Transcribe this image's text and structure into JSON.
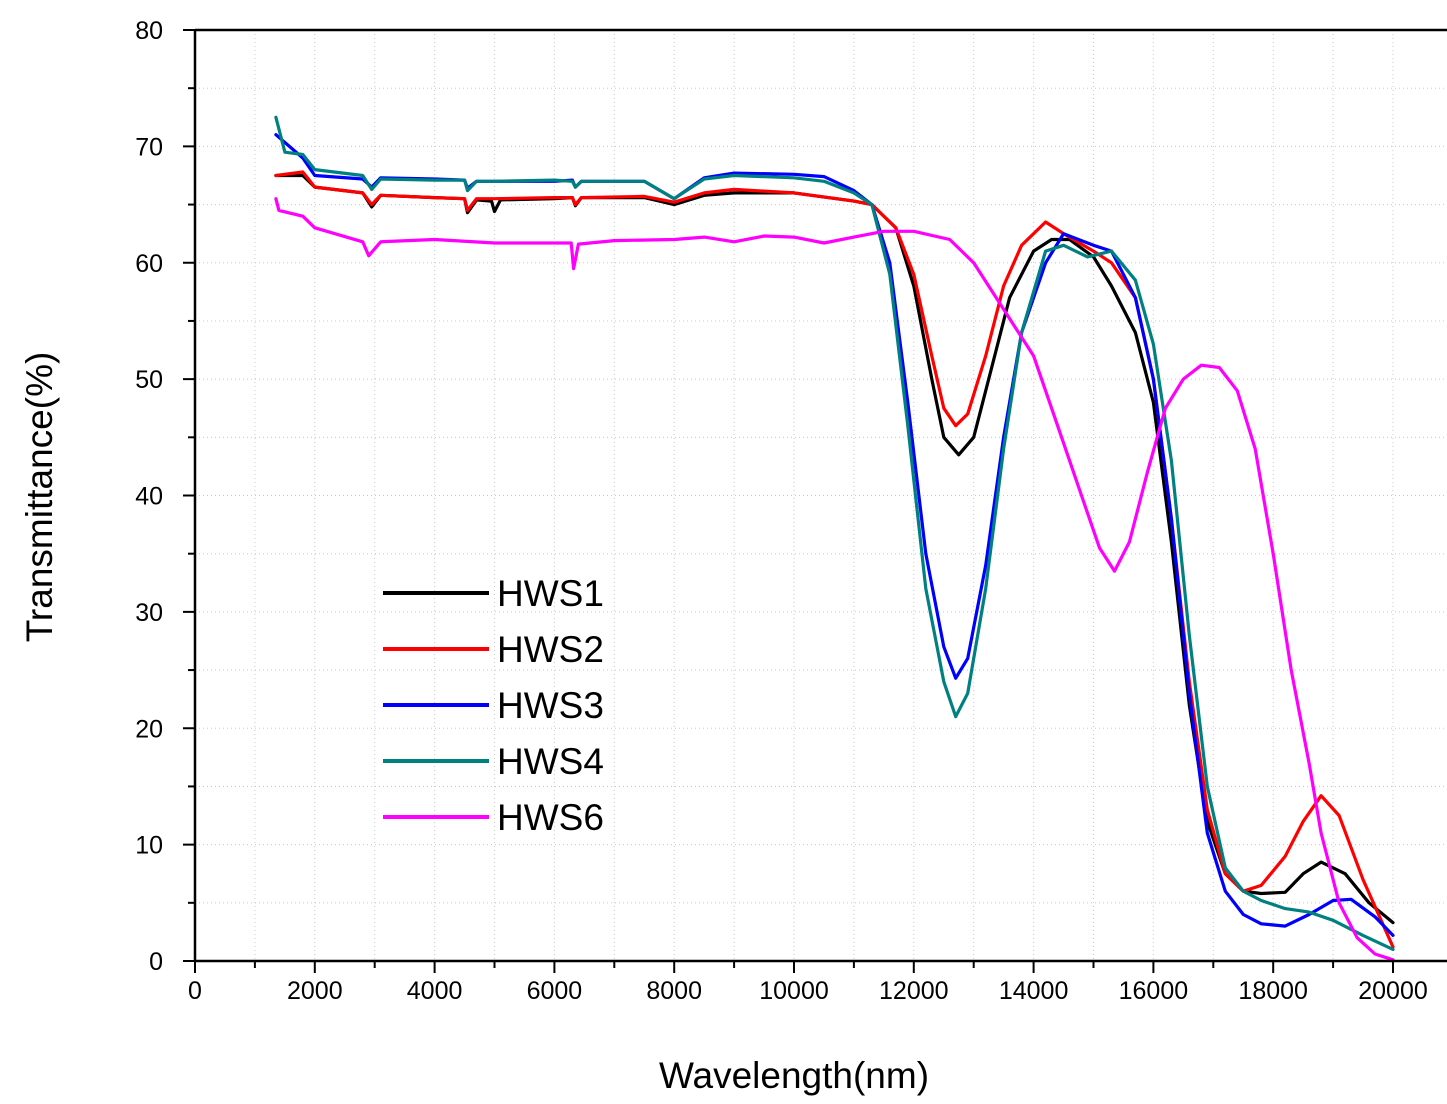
{
  "chart_data": {
    "type": "line",
    "xlabel": "Wavelength(nm)",
    "ylabel": "Transmittance(%)",
    "xlim": [
      0,
      21000
    ],
    "ylim": [
      0,
      80
    ],
    "xticks": [
      0,
      2000,
      4000,
      6000,
      8000,
      10000,
      12000,
      14000,
      16000,
      18000,
      20000
    ],
    "yticks": [
      0,
      10,
      20,
      30,
      40,
      50,
      60,
      70,
      80
    ],
    "grid": true,
    "legend_position": "lower-left",
    "series": [
      {
        "name": "HWS1",
        "color": "#000000",
        "points": [
          [
            1350,
            67.5
          ],
          [
            1800,
            67.5
          ],
          [
            2000,
            66.5
          ],
          [
            2800,
            66
          ],
          [
            2950,
            64.8
          ],
          [
            3100,
            65.8
          ],
          [
            4000,
            65.6
          ],
          [
            4500,
            65.5
          ],
          [
            4550,
            64.3
          ],
          [
            4700,
            65.4
          ],
          [
            4950,
            65.3
          ],
          [
            5000,
            64.4
          ],
          [
            5100,
            65.4
          ],
          [
            6000,
            65.5
          ],
          [
            6300,
            65.6
          ],
          [
            6350,
            64.9
          ],
          [
            6450,
            65.6
          ],
          [
            7500,
            65.6
          ],
          [
            8000,
            65
          ],
          [
            8500,
            65.8
          ],
          [
            9000,
            66
          ],
          [
            10000,
            66
          ],
          [
            11000,
            65.3
          ],
          [
            11300,
            65
          ],
          [
            11700,
            63
          ],
          [
            12000,
            58
          ],
          [
            12300,
            50
          ],
          [
            12500,
            45
          ],
          [
            12750,
            43.5
          ],
          [
            13000,
            45
          ],
          [
            13300,
            51
          ],
          [
            13600,
            57
          ],
          [
            14000,
            61
          ],
          [
            14300,
            62
          ],
          [
            14600,
            62
          ],
          [
            15000,
            60.5
          ],
          [
            15300,
            58
          ],
          [
            15700,
            54
          ],
          [
            16000,
            48
          ],
          [
            16300,
            36
          ],
          [
            16600,
            22
          ],
          [
            16900,
            12
          ],
          [
            17200,
            7.5
          ],
          [
            17500,
            6
          ],
          [
            17800,
            5.8
          ],
          [
            18200,
            5.9
          ],
          [
            18500,
            7.5
          ],
          [
            18800,
            8.5
          ],
          [
            19200,
            7.5
          ],
          [
            19600,
            5
          ],
          [
            20000,
            3.3
          ]
        ]
      },
      {
        "name": "HWS2",
        "color": "#ff0000",
        "points": [
          [
            1350,
            67.5
          ],
          [
            1800,
            67.8
          ],
          [
            2000,
            66.5
          ],
          [
            2800,
            66
          ],
          [
            2950,
            65
          ],
          [
            3100,
            65.8
          ],
          [
            4000,
            65.6
          ],
          [
            4500,
            65.5
          ],
          [
            4550,
            64.5
          ],
          [
            4700,
            65.5
          ],
          [
            5000,
            65.5
          ],
          [
            6000,
            65.6
          ],
          [
            6300,
            65.6
          ],
          [
            6350,
            65
          ],
          [
            6450,
            65.6
          ],
          [
            7500,
            65.7
          ],
          [
            8000,
            65.2
          ],
          [
            8500,
            66
          ],
          [
            9000,
            66.3
          ],
          [
            10000,
            66
          ],
          [
            11000,
            65.3
          ],
          [
            11300,
            65
          ],
          [
            11700,
            63
          ],
          [
            12000,
            59
          ],
          [
            12300,
            52
          ],
          [
            12500,
            47.5
          ],
          [
            12700,
            46
          ],
          [
            12900,
            47
          ],
          [
            13200,
            52
          ],
          [
            13500,
            58
          ],
          [
            13800,
            61.5
          ],
          [
            14200,
            63.5
          ],
          [
            14500,
            62.5
          ],
          [
            15000,
            61
          ],
          [
            15300,
            60
          ],
          [
            15700,
            57
          ],
          [
            16000,
            50
          ],
          [
            16300,
            38
          ],
          [
            16600,
            24
          ],
          [
            16900,
            13
          ],
          [
            17200,
            7.5
          ],
          [
            17500,
            6
          ],
          [
            17800,
            6.5
          ],
          [
            18200,
            9
          ],
          [
            18500,
            12
          ],
          [
            18800,
            14.2
          ],
          [
            19100,
            12.5
          ],
          [
            19500,
            7
          ],
          [
            20000,
            1.2
          ]
        ]
      },
      {
        "name": "HWS3",
        "color": "#0000ff",
        "points": [
          [
            1350,
            71
          ],
          [
            1800,
            69
          ],
          [
            2000,
            67.5
          ],
          [
            2800,
            67.2
          ],
          [
            2950,
            66.5
          ],
          [
            3100,
            67.3
          ],
          [
            4000,
            67.2
          ],
          [
            4500,
            67.1
          ],
          [
            4550,
            66.4
          ],
          [
            4700,
            67
          ],
          [
            5000,
            67
          ],
          [
            6000,
            67
          ],
          [
            6300,
            67.1
          ],
          [
            6350,
            66.5
          ],
          [
            6450,
            67
          ],
          [
            7500,
            67
          ],
          [
            8000,
            65.5
          ],
          [
            8500,
            67.3
          ],
          [
            9000,
            67.7
          ],
          [
            10000,
            67.6
          ],
          [
            10500,
            67.4
          ],
          [
            11000,
            66.2
          ],
          [
            11300,
            65
          ],
          [
            11600,
            60
          ],
          [
            11900,
            48
          ],
          [
            12200,
            35
          ],
          [
            12500,
            27
          ],
          [
            12700,
            24.3
          ],
          [
            12900,
            26
          ],
          [
            13200,
            34
          ],
          [
            13500,
            45
          ],
          [
            13800,
            54
          ],
          [
            14200,
            60
          ],
          [
            14500,
            62.5
          ],
          [
            15000,
            61.5
          ],
          [
            15300,
            61
          ],
          [
            15700,
            57
          ],
          [
            16000,
            50
          ],
          [
            16300,
            38
          ],
          [
            16600,
            23
          ],
          [
            16900,
            11
          ],
          [
            17200,
            6
          ],
          [
            17500,
            4
          ],
          [
            17800,
            3.2
          ],
          [
            18200,
            3
          ],
          [
            18600,
            4
          ],
          [
            19000,
            5.2
          ],
          [
            19300,
            5.3
          ],
          [
            19700,
            3.8
          ],
          [
            20000,
            2.2
          ]
        ]
      },
      {
        "name": "HWS4",
        "color": "#008080",
        "points": [
          [
            1350,
            72.5
          ],
          [
            1500,
            69.5
          ],
          [
            1800,
            69.3
          ],
          [
            2000,
            68
          ],
          [
            2800,
            67.5
          ],
          [
            2950,
            66.3
          ],
          [
            3100,
            67.2
          ],
          [
            4000,
            67.1
          ],
          [
            4500,
            67.1
          ],
          [
            4550,
            66.2
          ],
          [
            4700,
            67
          ],
          [
            5000,
            67
          ],
          [
            6000,
            67.1
          ],
          [
            6300,
            67
          ],
          [
            6350,
            66.5
          ],
          [
            6450,
            67
          ],
          [
            7500,
            67
          ],
          [
            8000,
            65.5
          ],
          [
            8500,
            67.2
          ],
          [
            9000,
            67.5
          ],
          [
            10000,
            67.3
          ],
          [
            10500,
            67
          ],
          [
            11000,
            66
          ],
          [
            11300,
            65
          ],
          [
            11600,
            59
          ],
          [
            11900,
            46
          ],
          [
            12200,
            32
          ],
          [
            12500,
            24
          ],
          [
            12700,
            21
          ],
          [
            12900,
            23
          ],
          [
            13200,
            32
          ],
          [
            13500,
            44
          ],
          [
            13800,
            54
          ],
          [
            14200,
            61
          ],
          [
            14500,
            61.5
          ],
          [
            14900,
            60.5
          ],
          [
            15300,
            61
          ],
          [
            15700,
            58.5
          ],
          [
            16000,
            53
          ],
          [
            16300,
            43
          ],
          [
            16600,
            28
          ],
          [
            16900,
            15
          ],
          [
            17200,
            8
          ],
          [
            17500,
            6
          ],
          [
            17800,
            5.2
          ],
          [
            18200,
            4.5
          ],
          [
            18600,
            4.2
          ],
          [
            19000,
            3.5
          ],
          [
            19500,
            2.2
          ],
          [
            20000,
            1
          ]
        ]
      },
      {
        "name": "HWS6",
        "color": "#ff00ff",
        "points": [
          [
            1350,
            65.5
          ],
          [
            1400,
            64.5
          ],
          [
            1800,
            64
          ],
          [
            2000,
            63
          ],
          [
            2800,
            61.8
          ],
          [
            2900,
            60.6
          ],
          [
            3100,
            61.8
          ],
          [
            4000,
            62
          ],
          [
            5000,
            61.7
          ],
          [
            6000,
            61.7
          ],
          [
            6280,
            61.7
          ],
          [
            6320,
            59.5
          ],
          [
            6400,
            61.6
          ],
          [
            7000,
            61.9
          ],
          [
            8000,
            62
          ],
          [
            8500,
            62.2
          ],
          [
            9000,
            61.8
          ],
          [
            9500,
            62.3
          ],
          [
            10000,
            62.2
          ],
          [
            10500,
            61.7
          ],
          [
            11000,
            62.2
          ],
          [
            11500,
            62.7
          ],
          [
            12000,
            62.7
          ],
          [
            12600,
            62
          ],
          [
            13000,
            60
          ],
          [
            13500,
            56
          ],
          [
            14000,
            52
          ],
          [
            14400,
            46
          ],
          [
            14800,
            40
          ],
          [
            15100,
            35.5
          ],
          [
            15350,
            33.5
          ],
          [
            15600,
            36
          ],
          [
            15900,
            42
          ],
          [
            16200,
            47.5
          ],
          [
            16500,
            50
          ],
          [
            16800,
            51.2
          ],
          [
            17100,
            51
          ],
          [
            17400,
            49
          ],
          [
            17700,
            44
          ],
          [
            18000,
            35
          ],
          [
            18300,
            25
          ],
          [
            18600,
            17
          ],
          [
            18800,
            11
          ],
          [
            19100,
            5
          ],
          [
            19400,
            2
          ],
          [
            19700,
            0.6
          ],
          [
            20000,
            0.1
          ]
        ]
      }
    ]
  }
}
